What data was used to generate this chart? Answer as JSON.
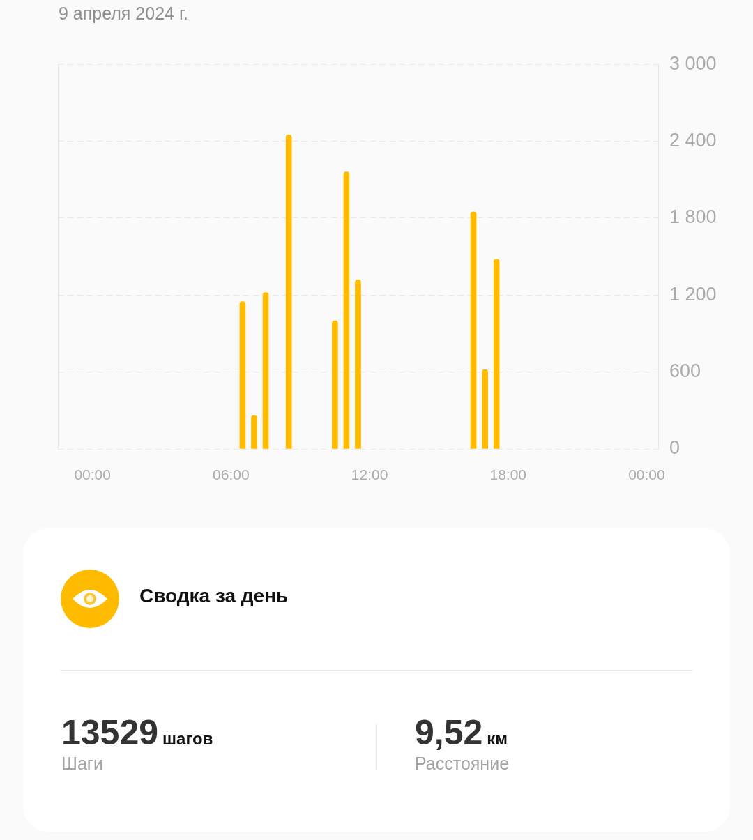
{
  "chart_data": [
    {
      "type": "bar",
      "title": "9 апреля 2024 г.",
      "x": [
        6.5,
        7,
        7.5,
        8.5,
        10.5,
        11,
        11.5,
        16.5,
        17,
        17.5
      ],
      "values": [
        1150,
        260,
        1220,
        2450,
        1000,
        2160,
        1320,
        1850,
        620,
        1480
      ],
      "color": "#ffbb00",
      "xlim": [
        -1.5,
        24.5
      ],
      "xticks": [
        {
          "value": 0,
          "label": "00:00"
        },
        {
          "value": 6,
          "label": "06:00"
        },
        {
          "value": 12,
          "label": "12:00"
        },
        {
          "value": 18,
          "label": "18:00"
        },
        {
          "value": 24,
          "label": "00:00"
        }
      ],
      "ylim": [
        0,
        3000
      ],
      "yticks": [
        0,
        600,
        {
          "value": 1200,
          "label": "1 200"
        },
        {
          "value": 1800,
          "label": "1 800"
        },
        {
          "value": 2400,
          "label": "2 400"
        },
        {
          "value": 3000,
          "label": "3 000"
        }
      ],
      "grid": "y"
    },
    {
      "type": "other",
      "title": "Сводка за день",
      "annotations": [
        "13529",
        "шагов",
        "Шаги",
        "9,52",
        "км",
        "Расстояние"
      ]
    }
  ]
}
